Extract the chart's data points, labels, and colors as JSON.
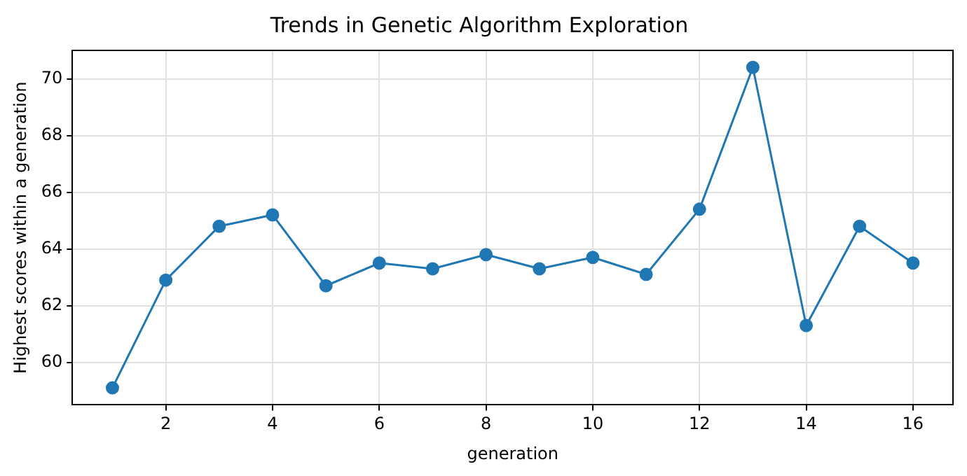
{
  "chart_data": {
    "type": "line",
    "title": "Trends in Genetic Algorithm Exploration",
    "xlabel": "generation",
    "ylabel": "Highest scores within a generation",
    "x": [
      1,
      2,
      3,
      4,
      5,
      6,
      7,
      8,
      9,
      10,
      11,
      12,
      13,
      14,
      15,
      16
    ],
    "series": [
      {
        "color": "#1f77b4",
        "values": [
          59.1,
          62.9,
          64.8,
          65.2,
          62.7,
          63.5,
          63.3,
          63.8,
          63.3,
          63.7,
          63.1,
          65.4,
          70.4,
          61.3,
          64.8,
          63.5
        ]
      }
    ],
    "xlim": [
      0.25,
      16.75
    ],
    "xticks": [
      2,
      4,
      6,
      8,
      10,
      12,
      14,
      16
    ],
    "ylim": [
      58.5,
      71
    ],
    "yticks": [
      60,
      62,
      64,
      66,
      68,
      70
    ],
    "grid": true,
    "marker": "circle",
    "line_style": "solid"
  }
}
